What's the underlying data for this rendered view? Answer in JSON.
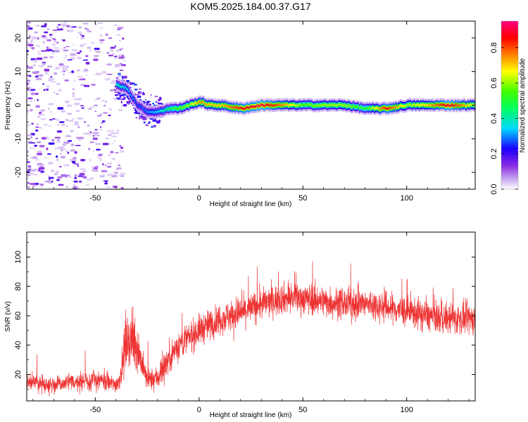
{
  "title": "KOM5.2025.184.00.37.G17",
  "chart_data": [
    {
      "type": "heatmap",
      "xlabel": "Height of straight line (km)",
      "ylabel": "Frequency (Hz)",
      "xlim": [
        -83,
        133
      ],
      "ylim": [
        -25,
        25
      ],
      "xticks": [
        -50,
        0,
        50,
        100
      ],
      "yticks": [
        -20,
        -10,
        0,
        10,
        20
      ],
      "colorbar": {
        "label": "Normalized spectral amplitude",
        "range": [
          0.0,
          0.95
        ],
        "ticks": [
          "0.0",
          "0.2",
          "0.4",
          "0.6",
          "0.8"
        ],
        "colors": [
          "#ffffff",
          "#c8a8f0",
          "#8a2be2",
          "#1c00ff",
          "#00d8ff",
          "#00ff60",
          "#40ff00",
          "#ffff00",
          "#ff8000",
          "#ff0000",
          "#ff007f"
        ]
      },
      "ridge": {
        "x": [
          -40,
          -35,
          -30,
          -25,
          -20,
          -15,
          -10,
          -5,
          0,
          5,
          10,
          20,
          30,
          40,
          50,
          60,
          70,
          80,
          90,
          100,
          110,
          120,
          133
        ],
        "freq": [
          6,
          5,
          0,
          -2,
          -2,
          -1,
          -1,
          0,
          1,
          0,
          0,
          -1,
          0,
          0,
          0,
          0,
          0,
          -1,
          -1,
          0,
          0,
          0,
          0
        ],
        "amplitude": [
          0.4,
          0.35,
          0.25,
          0.3,
          0.35,
          0.45,
          0.55,
          0.6,
          0.75,
          0.7,
          0.7,
          0.85,
          0.9,
          0.75,
          0.55,
          0.6,
          0.6,
          0.5,
          0.85,
          0.6,
          0.7,
          0.9,
          0.6
        ]
      }
    },
    {
      "type": "line",
      "xlabel": "Height of straight line (km)",
      "ylabel": "SNR (v/v)",
      "xlim": [
        -83,
        133
      ],
      "ylim": [
        2,
        117
      ],
      "xticks": [
        -50,
        0,
        50,
        100
      ],
      "yticks": [
        20,
        40,
        60,
        80,
        100
      ],
      "color": "#ee3333",
      "series": [
        {
          "x": [
            -83,
            -70,
            -60,
            -50,
            -45,
            -40,
            -38,
            -35,
            -30,
            -27,
            -25,
            -20,
            -15,
            -10,
            -5,
            0,
            10,
            20,
            30,
            40,
            50,
            60,
            70,
            80,
            90,
            100,
            110,
            120,
            133
          ],
          "values": [
            15,
            13,
            15,
            16,
            15,
            13,
            18,
            45,
            40,
            25,
            16,
            18,
            30,
            40,
            45,
            50,
            58,
            62,
            68,
            72,
            72,
            70,
            68,
            68,
            66,
            63,
            60,
            58,
            58
          ]
        }
      ]
    }
  ]
}
